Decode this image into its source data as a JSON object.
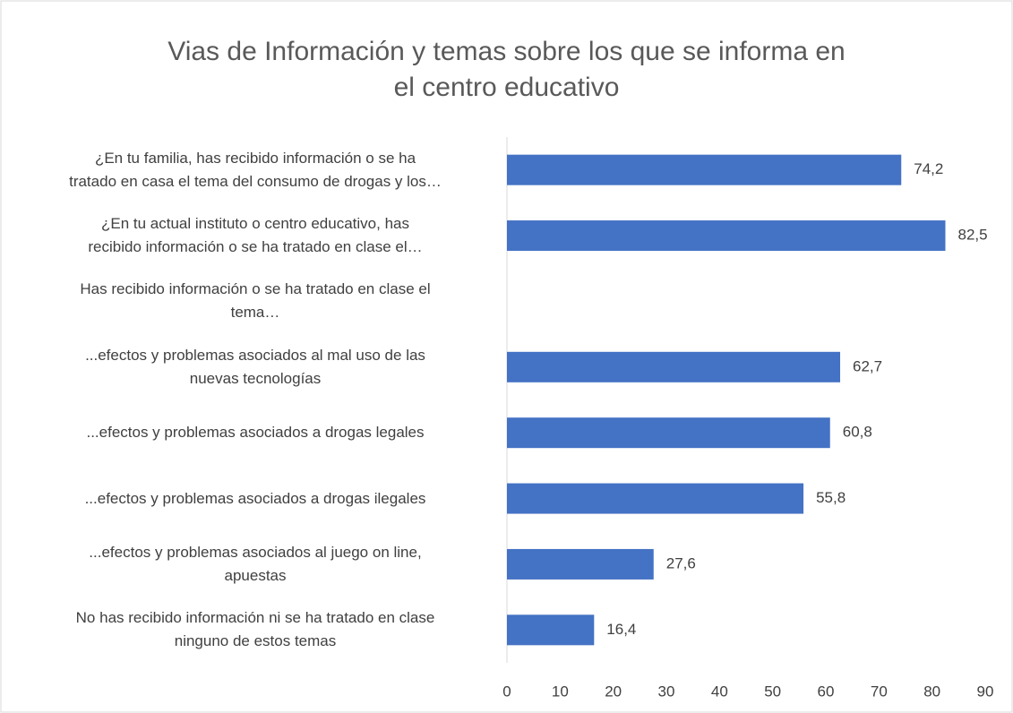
{
  "chart_data": {
    "type": "hbar",
    "title": "Vias de Información y temas sobre los que se informa en el centro educativo",
    "categories": [
      "¿En tu familia, has recibido información o se ha\ntratado en casa el tema del consumo de drogas y los…",
      "¿En tu actual instituto o centro educativo, has\nrecibido información o se ha tratado en clase el…",
      "Has recibido información o se ha tratado en clase el\ntema…",
      "...efectos y problemas asociados al mal uso de las\nnuevas tecnologías",
      "...efectos y problemas asociados a drogas legales",
      "...efectos y problemas asociados  a drogas ilegales",
      "...efectos y problemas asociados al juego on line,\napuestas",
      "No has recibido información ni se ha tratado en clase\nninguno de estos temas"
    ],
    "values": [
      74.2,
      82.5,
      null,
      62.7,
      60.8,
      55.8,
      27.6,
      16.4
    ],
    "value_labels": [
      "74,2",
      "82,5",
      null,
      "62,7",
      "60,8",
      "55,8",
      "27,6",
      "16,4"
    ],
    "color": "#4472c4",
    "xlim": [
      0,
      90
    ],
    "xticks": [
      0,
      10,
      20,
      30,
      40,
      50,
      60,
      70,
      80,
      90
    ]
  }
}
